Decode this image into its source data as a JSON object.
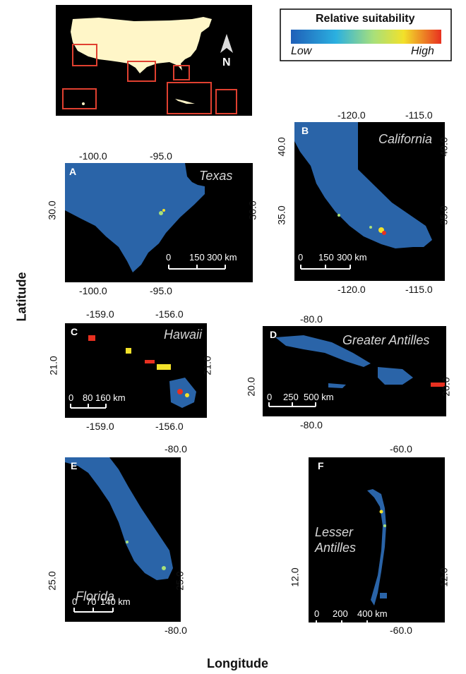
{
  "overview": {
    "north_label": "N"
  },
  "legend": {
    "title": "Relative suitability",
    "low": "Low",
    "high": "High",
    "gradient": [
      "#1f5fb8",
      "#2bb0e0",
      "#a8e07a",
      "#f2e12a",
      "#e83020"
    ]
  },
  "colors": {
    "land": "#2a64a8",
    "overview_land": "#fff6c8",
    "box": "#e04030"
  },
  "panels": {
    "A": {
      "letter": "A",
      "name": "Texas",
      "x_top": [
        "-100.0",
        "-95.0"
      ],
      "x_bottom": [
        "-100.0",
        "-95.0"
      ],
      "y_left": [
        "30.0"
      ],
      "y_right": [
        "30.0"
      ],
      "scale": [
        "0",
        "150",
        "300 km"
      ]
    },
    "B": {
      "letter": "B",
      "name": "California",
      "x_top": [
        "-120.0",
        "-115.0"
      ],
      "x_bottom": [
        "-120.0",
        "-115.0"
      ],
      "y_left": [
        "40.0",
        "35.0"
      ],
      "y_right": [
        "40.0",
        "35.0"
      ],
      "scale": [
        "0",
        "150",
        "300 km"
      ]
    },
    "C": {
      "letter": "C",
      "name": "Hawaii",
      "x_top": [
        "-159.0",
        "-156.0"
      ],
      "x_bottom": [
        "-159.0",
        "-156.0"
      ],
      "y_left": [
        "21.0"
      ],
      "y_right": [
        "21.0"
      ],
      "scale": [
        "0",
        "80",
        "160 km"
      ]
    },
    "D": {
      "letter": "D",
      "name": "Greater Antilles",
      "x_top": [
        "-80.0"
      ],
      "x_bottom": [
        "-80.0"
      ],
      "y_left": [
        "20.0"
      ],
      "y_right": [
        "20.0"
      ],
      "scale": [
        "0",
        "250",
        "500 km"
      ]
    },
    "E": {
      "letter": "E",
      "name": "Florida",
      "x_top": [
        "-80.0"
      ],
      "x_bottom": [
        "-80.0"
      ],
      "y_left": [
        "25.0"
      ],
      "y_right": [
        "25.0"
      ],
      "scale": [
        "0",
        "70",
        "140 km"
      ]
    },
    "F": {
      "letter": "F",
      "name_line1": "Lesser",
      "name_line2": "Antilles",
      "x_top": [
        "-60.0"
      ],
      "x_bottom": [
        "-60.0"
      ],
      "y_left": [
        "12.0"
      ],
      "y_right": [
        "12.0"
      ],
      "scale": [
        "0",
        "200",
        "400 km"
      ]
    }
  },
  "axis_titles": {
    "x": "Longitude",
    "y": "Latitude"
  }
}
